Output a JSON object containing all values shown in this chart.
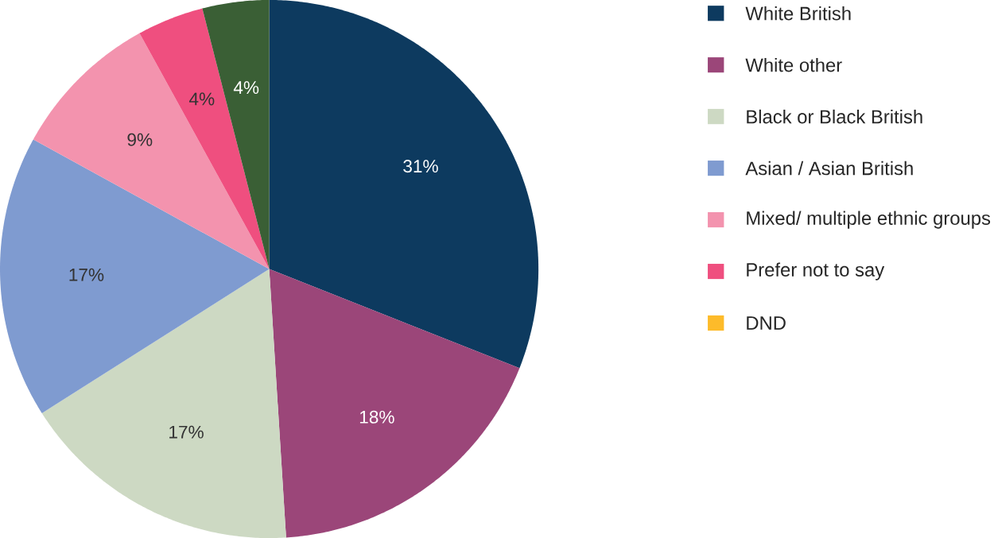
{
  "chart_data": {
    "type": "pie",
    "categories": [
      "White British",
      "White other",
      "Black or Black British",
      "Asian / Asian British",
      "Mixed/ multiple ethnic groups",
      "Prefer not to say",
      null,
      "DND"
    ],
    "values": [
      31,
      18,
      17,
      17,
      9,
      4,
      4,
      0
    ],
    "colors": [
      "#0d3a5f",
      "#9b4679",
      "#cdd9c3",
      "#7f9bd0",
      "#f393ae",
      "#ef4f7f",
      "#3a5f35",
      "#fdbb2a"
    ],
    "value_labels": [
      "31%",
      "18%",
      "17%",
      "17%",
      "9%",
      "4%",
      "4%",
      null
    ],
    "legend": "right"
  }
}
